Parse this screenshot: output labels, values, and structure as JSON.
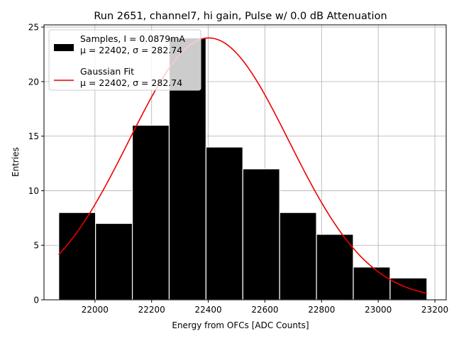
{
  "chart_data": {
    "type": "bar",
    "title": "Run 2651, channel7, hi gain, Pulse w/ 0.0 dB Attenuation",
    "xlabel": "Energy from OFCs [ADC Counts]",
    "ylabel": "Entries",
    "xlim": [
      21820,
      23240
    ],
    "ylim": [
      0,
      25.2
    ],
    "xticks": [
      22000,
      22200,
      22400,
      22600,
      22800,
      23000,
      23200
    ],
    "yticks": [
      0,
      5,
      10,
      15,
      20,
      25
    ],
    "xtick_labels": [
      "22000",
      "22200",
      "22400",
      "22600",
      "22800",
      "23000",
      "23200"
    ],
    "ytick_labels": [
      "0",
      "5",
      "10",
      "15",
      "20",
      "25"
    ],
    "grid": true,
    "legend_position": "top-left",
    "bins": [
      {
        "x0": 21872,
        "x1": 22002,
        "count": 8
      },
      {
        "x0": 22002,
        "x1": 22132,
        "count": 7
      },
      {
        "x0": 22132,
        "x1": 22262,
        "count": 16
      },
      {
        "x0": 22262,
        "x1": 22392,
        "count": 24
      },
      {
        "x0": 22392,
        "x1": 22522,
        "count": 14
      },
      {
        "x0": 22522,
        "x1": 22652,
        "count": 12
      },
      {
        "x0": 22652,
        "x1": 22782,
        "count": 8
      },
      {
        "x0": 22782,
        "x1": 22912,
        "count": 6
      },
      {
        "x0": 22912,
        "x1": 23042,
        "count": 3
      },
      {
        "x0": 23042,
        "x1": 23172,
        "count": 2
      }
    ],
    "fit": {
      "mu": 22402,
      "sigma": 282.74,
      "amplitude": 24,
      "x_range": [
        21872,
        23172
      ]
    },
    "legend": [
      {
        "line1": "Samples, I = 0.0879mA",
        "line2": "μ = 22402, σ = 282.74",
        "color": "#000000",
        "kind": "patch"
      },
      {
        "line1": "Gaussian Fit",
        "line2": "μ = 22402, σ = 282.74",
        "color": "#ee0000",
        "kind": "line"
      }
    ]
  }
}
